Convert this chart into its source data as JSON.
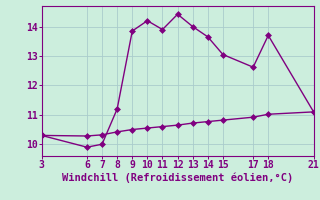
{
  "xlabel": "Windchill (Refroidissement éolien,°C)",
  "background_color": "#cceedd",
  "line_color": "#800080",
  "grid_color": "#aacccc",
  "line1_x": [
    3,
    6,
    7,
    8,
    9,
    10,
    11,
    12,
    13,
    14,
    15,
    17,
    18,
    21
  ],
  "line1_y": [
    10.3,
    9.9,
    10.0,
    11.2,
    13.85,
    14.2,
    13.9,
    14.42,
    14.0,
    13.65,
    13.05,
    12.62,
    13.7,
    11.1
  ],
  "line2_x": [
    3,
    6,
    7,
    8,
    9,
    10,
    11,
    12,
    13,
    14,
    15,
    17,
    18,
    21
  ],
  "line2_y": [
    10.3,
    10.28,
    10.32,
    10.42,
    10.5,
    10.55,
    10.6,
    10.65,
    10.72,
    10.77,
    10.82,
    10.92,
    11.02,
    11.1
  ],
  "xlim": [
    3,
    21
  ],
  "ylim": [
    9.6,
    14.7
  ],
  "yticks": [
    10,
    11,
    12,
    13,
    14
  ],
  "xticks": [
    3,
    6,
    7,
    8,
    9,
    10,
    11,
    12,
    13,
    14,
    15,
    17,
    18,
    21
  ],
  "markersize": 3,
  "linewidth": 1.0,
  "xlabel_fontsize": 7.5,
  "tick_fontsize": 7
}
